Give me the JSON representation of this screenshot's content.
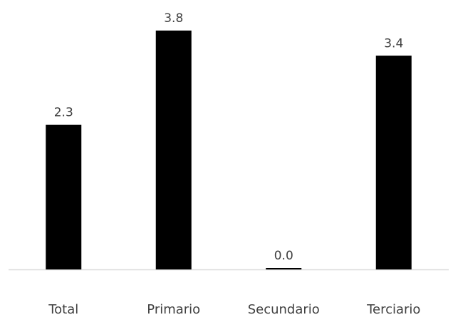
{
  "chart_data": {
    "type": "bar",
    "categories": [
      "Total",
      "Primario",
      "Secundario",
      "Terciario"
    ],
    "values": [
      2.3,
      3.8,
      0.0,
      3.4
    ],
    "data_labels": [
      "2.3",
      "3.8",
      "0.0",
      "3.4"
    ],
    "ylim": [
      0,
      3.8
    ],
    "grid": false,
    "legend": "none",
    "bar_color": "#000000",
    "label_color": "#404040",
    "axis_color": "#d9d9d9"
  }
}
